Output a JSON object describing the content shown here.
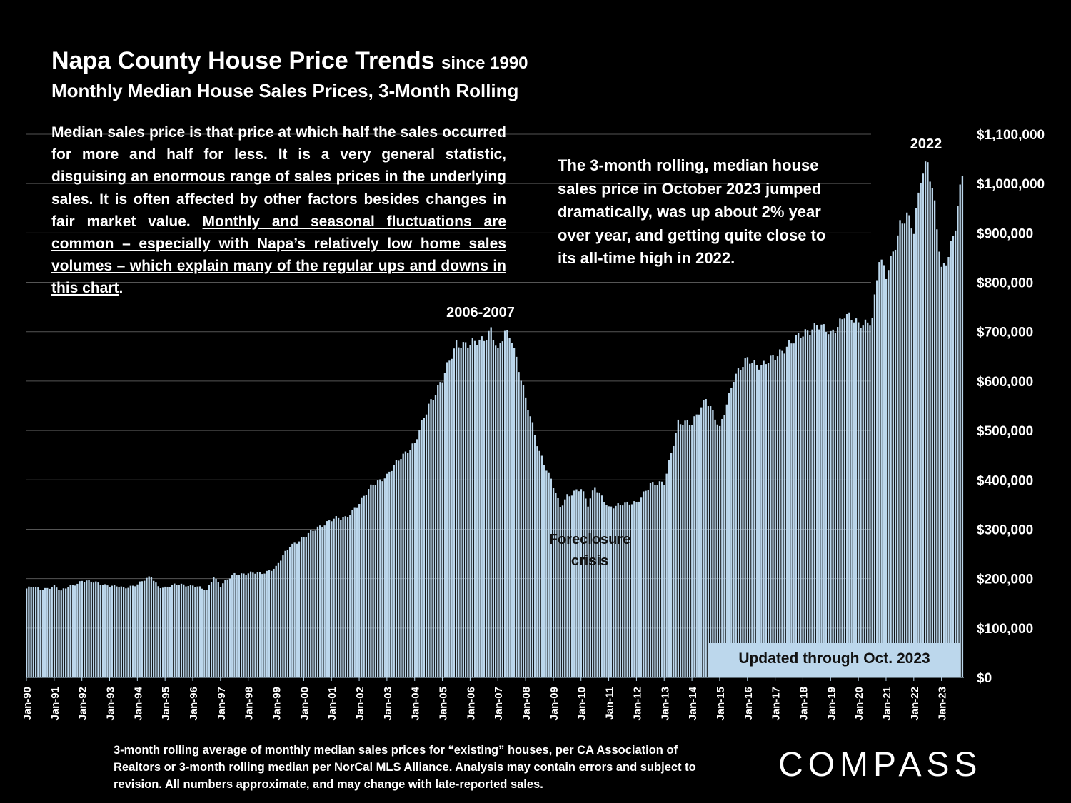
{
  "header": {
    "title": "Napa County House Price Trends",
    "title_suffix": "since 1990",
    "subtitle": "Monthly Median House Sales Prices, 3-Month Rolling"
  },
  "notes": {
    "left_plain": "Median sales price is that price at which half the sales occurred for more and half for less. It is a very general statistic, disguising an enormous range of sales prices in the underlying sales. It is often affected by other factors besides changes in fair market value. ",
    "left_underlined": "Monthly and seasonal fluctuations are common – especially with Napa’s relatively low home sales volumes – which explain many of the regular ups and downs in this chart",
    "left_end": ".",
    "right": "The 3-month rolling, median house sales price in October 2023 jumped dramatically, was up about 2% year over year, and getting quite close to its all-time high in 2022."
  },
  "updated_label": "Updated through Oct. 2023",
  "footnote": "3-month rolling average of monthly median sales prices for “existing” houses, per CA Association of Realtors or 3-month rolling median per NorCal MLS Alliance. Analysis may contain errors and subject to revision. All numbers approximate, and may change with late-reported sales.",
  "logo": "COMPASS",
  "colors": {
    "bar": "#bcd7ec",
    "background": "#000000",
    "text": "#ffffff",
    "grid": "#555555"
  },
  "chart_data": {
    "type": "bar",
    "start": "Jan-90",
    "end": "Oct-23",
    "ylim": [
      0,
      1100000
    ],
    "y_ticks": [
      "$0",
      "$100,000",
      "$200,000",
      "$300,000",
      "$400,000",
      "$500,000",
      "$600,000",
      "$700,000",
      "$800,000",
      "$900,000",
      "$1,000,000",
      "$1,100,000"
    ],
    "x_ticks": [
      "Jan-90",
      "Jan-91",
      "Jan-92",
      "Jan-93",
      "Jan-94",
      "Jan-95",
      "Jan-96",
      "Jan-97",
      "Jan-98",
      "Jan-99",
      "Jan-00",
      "Jan-01",
      "Jan-02",
      "Jan-03",
      "Jan-04",
      "Jan-05",
      "Jan-06",
      "Jan-07",
      "Jan-08",
      "Jan-09",
      "Jan-10",
      "Jan-11",
      "Jan-12",
      "Jan-13",
      "Jan-14",
      "Jan-15",
      "Jan-16",
      "Jan-17",
      "Jan-18",
      "Jan-19",
      "Jan-20",
      "Jan-21",
      "Jan-22",
      "Jan-23"
    ],
    "annotations": [
      {
        "text": "2006-2007",
        "near": "Jan-07"
      },
      {
        "text": "Foreclosure",
        "near": "Jan-10"
      },
      {
        "text": "crisis",
        "near": "Jan-10"
      },
      {
        "text": "2022",
        "near": "Jul-22"
      }
    ],
    "anchors": [
      [
        "Jan-90",
        180000
      ],
      [
        "Apr-90",
        183000
      ],
      [
        "Jul-90",
        178000
      ],
      [
        "Jan-91",
        185000
      ],
      [
        "Apr-91",
        174000
      ],
      [
        "Jul-91",
        184000
      ],
      [
        "Jan-92",
        195000
      ],
      [
        "Jul-92",
        193000
      ],
      [
        "Jan-93",
        185000
      ],
      [
        "Jul-93",
        182000
      ],
      [
        "Jan-94",
        188000
      ],
      [
        "Jul-94",
        205000
      ],
      [
        "Oct-94",
        185000
      ],
      [
        "Jan-95",
        181000
      ],
      [
        "Jul-95",
        190000
      ],
      [
        "Jan-96",
        185000
      ],
      [
        "Jul-96",
        177000
      ],
      [
        "Oct-96",
        205000
      ],
      [
        "Jan-97",
        185000
      ],
      [
        "Jul-97",
        210000
      ],
      [
        "Jan-98",
        210000
      ],
      [
        "Jul-98",
        212000
      ],
      [
        "Jan-99",
        222000
      ],
      [
        "Jul-99",
        268000
      ],
      [
        "Jan-00",
        282000
      ],
      [
        "Jul-00",
        305000
      ],
      [
        "Jan-01",
        318000
      ],
      [
        "Jul-01",
        325000
      ],
      [
        "Jan-02",
        350000
      ],
      [
        "Jul-02",
        395000
      ],
      [
        "Jan-03",
        405000
      ],
      [
        "Jul-03",
        450000
      ],
      [
        "Jan-04",
        470000
      ],
      [
        "Jul-04",
        555000
      ],
      [
        "Jan-05",
        600000
      ],
      [
        "Jul-05",
        680000
      ],
      [
        "Jan-06",
        670000
      ],
      [
        "Jul-06",
        690000
      ],
      [
        "Oct-06",
        705000
      ],
      [
        "Jan-07",
        655000
      ],
      [
        "Apr-07",
        700000
      ],
      [
        "Jul-07",
        690000
      ],
      [
        "Jan-08",
        560000
      ],
      [
        "Jul-08",
        460000
      ],
      [
        "Jan-09",
        385000
      ],
      [
        "Apr-09",
        345000
      ],
      [
        "Jul-09",
        370000
      ],
      [
        "Jan-10",
        380000
      ],
      [
        "Apr-10",
        350000
      ],
      [
        "Jul-10",
        390000
      ],
      [
        "Jan-11",
        340000
      ],
      [
        "Jul-11",
        355000
      ],
      [
        "Jan-12",
        350000
      ],
      [
        "Jul-12",
        395000
      ],
      [
        "Jan-13",
        390000
      ],
      [
        "Jul-13",
        520000
      ],
      [
        "Jan-14",
        510000
      ],
      [
        "Jul-14",
        570000
      ],
      [
        "Jan-15",
        500000
      ],
      [
        "Jul-15",
        610000
      ],
      [
        "Jan-16",
        640000
      ],
      [
        "Jul-16",
        635000
      ],
      [
        "Jan-17",
        645000
      ],
      [
        "Jul-17",
        680000
      ],
      [
        "Jan-18",
        690000
      ],
      [
        "Jul-18",
        720000
      ],
      [
        "Jan-19",
        690000
      ],
      [
        "Jul-19",
        740000
      ],
      [
        "Jan-20",
        710000
      ],
      [
        "Jul-20",
        730000
      ],
      [
        "Oct-20",
        845000
      ],
      [
        "Jan-21",
        810000
      ],
      [
        "Jul-21",
        920000
      ],
      [
        "Oct-21",
        930000
      ],
      [
        "Jan-22",
        900000
      ],
      [
        "Apr-22",
        1020000
      ],
      [
        "Jul-22",
        1050000
      ],
      [
        "Oct-22",
        950000
      ],
      [
        "Jan-23",
        820000
      ],
      [
        "Apr-23",
        860000
      ],
      [
        "Jul-23",
        920000
      ],
      [
        "Oct-23",
        1015000
      ]
    ]
  }
}
